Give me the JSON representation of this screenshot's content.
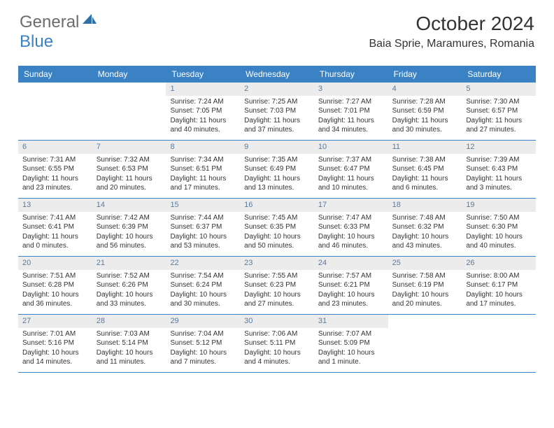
{
  "logo": {
    "general": "General",
    "blue": "Blue"
  },
  "title": "October 2024",
  "location": "Baia Sprie, Maramures, Romania",
  "colors": {
    "header_bg": "#3b82c4",
    "header_text": "#ffffff",
    "daynum_bg": "#ececec",
    "daynum_text": "#5a7a9a",
    "border": "#3b82c4",
    "body_text": "#333333",
    "logo_gray": "#6c6c6c",
    "logo_blue": "#3b82c4"
  },
  "weekdays": [
    "Sunday",
    "Monday",
    "Tuesday",
    "Wednesday",
    "Thursday",
    "Friday",
    "Saturday"
  ],
  "weeks": [
    [
      {
        "day": "",
        "sunrise": "",
        "sunset": "",
        "daylight": ""
      },
      {
        "day": "",
        "sunrise": "",
        "sunset": "",
        "daylight": ""
      },
      {
        "day": "1",
        "sunrise": "Sunrise: 7:24 AM",
        "sunset": "Sunset: 7:05 PM",
        "daylight": "Daylight: 11 hours and 40 minutes."
      },
      {
        "day": "2",
        "sunrise": "Sunrise: 7:25 AM",
        "sunset": "Sunset: 7:03 PM",
        "daylight": "Daylight: 11 hours and 37 minutes."
      },
      {
        "day": "3",
        "sunrise": "Sunrise: 7:27 AM",
        "sunset": "Sunset: 7:01 PM",
        "daylight": "Daylight: 11 hours and 34 minutes."
      },
      {
        "day": "4",
        "sunrise": "Sunrise: 7:28 AM",
        "sunset": "Sunset: 6:59 PM",
        "daylight": "Daylight: 11 hours and 30 minutes."
      },
      {
        "day": "5",
        "sunrise": "Sunrise: 7:30 AM",
        "sunset": "Sunset: 6:57 PM",
        "daylight": "Daylight: 11 hours and 27 minutes."
      }
    ],
    [
      {
        "day": "6",
        "sunrise": "Sunrise: 7:31 AM",
        "sunset": "Sunset: 6:55 PM",
        "daylight": "Daylight: 11 hours and 23 minutes."
      },
      {
        "day": "7",
        "sunrise": "Sunrise: 7:32 AM",
        "sunset": "Sunset: 6:53 PM",
        "daylight": "Daylight: 11 hours and 20 minutes."
      },
      {
        "day": "8",
        "sunrise": "Sunrise: 7:34 AM",
        "sunset": "Sunset: 6:51 PM",
        "daylight": "Daylight: 11 hours and 17 minutes."
      },
      {
        "day": "9",
        "sunrise": "Sunrise: 7:35 AM",
        "sunset": "Sunset: 6:49 PM",
        "daylight": "Daylight: 11 hours and 13 minutes."
      },
      {
        "day": "10",
        "sunrise": "Sunrise: 7:37 AM",
        "sunset": "Sunset: 6:47 PM",
        "daylight": "Daylight: 11 hours and 10 minutes."
      },
      {
        "day": "11",
        "sunrise": "Sunrise: 7:38 AM",
        "sunset": "Sunset: 6:45 PM",
        "daylight": "Daylight: 11 hours and 6 minutes."
      },
      {
        "day": "12",
        "sunrise": "Sunrise: 7:39 AM",
        "sunset": "Sunset: 6:43 PM",
        "daylight": "Daylight: 11 hours and 3 minutes."
      }
    ],
    [
      {
        "day": "13",
        "sunrise": "Sunrise: 7:41 AM",
        "sunset": "Sunset: 6:41 PM",
        "daylight": "Daylight: 11 hours and 0 minutes."
      },
      {
        "day": "14",
        "sunrise": "Sunrise: 7:42 AM",
        "sunset": "Sunset: 6:39 PM",
        "daylight": "Daylight: 10 hours and 56 minutes."
      },
      {
        "day": "15",
        "sunrise": "Sunrise: 7:44 AM",
        "sunset": "Sunset: 6:37 PM",
        "daylight": "Daylight: 10 hours and 53 minutes."
      },
      {
        "day": "16",
        "sunrise": "Sunrise: 7:45 AM",
        "sunset": "Sunset: 6:35 PM",
        "daylight": "Daylight: 10 hours and 50 minutes."
      },
      {
        "day": "17",
        "sunrise": "Sunrise: 7:47 AM",
        "sunset": "Sunset: 6:33 PM",
        "daylight": "Daylight: 10 hours and 46 minutes."
      },
      {
        "day": "18",
        "sunrise": "Sunrise: 7:48 AM",
        "sunset": "Sunset: 6:32 PM",
        "daylight": "Daylight: 10 hours and 43 minutes."
      },
      {
        "day": "19",
        "sunrise": "Sunrise: 7:50 AM",
        "sunset": "Sunset: 6:30 PM",
        "daylight": "Daylight: 10 hours and 40 minutes."
      }
    ],
    [
      {
        "day": "20",
        "sunrise": "Sunrise: 7:51 AM",
        "sunset": "Sunset: 6:28 PM",
        "daylight": "Daylight: 10 hours and 36 minutes."
      },
      {
        "day": "21",
        "sunrise": "Sunrise: 7:52 AM",
        "sunset": "Sunset: 6:26 PM",
        "daylight": "Daylight: 10 hours and 33 minutes."
      },
      {
        "day": "22",
        "sunrise": "Sunrise: 7:54 AM",
        "sunset": "Sunset: 6:24 PM",
        "daylight": "Daylight: 10 hours and 30 minutes."
      },
      {
        "day": "23",
        "sunrise": "Sunrise: 7:55 AM",
        "sunset": "Sunset: 6:23 PM",
        "daylight": "Daylight: 10 hours and 27 minutes."
      },
      {
        "day": "24",
        "sunrise": "Sunrise: 7:57 AM",
        "sunset": "Sunset: 6:21 PM",
        "daylight": "Daylight: 10 hours and 23 minutes."
      },
      {
        "day": "25",
        "sunrise": "Sunrise: 7:58 AM",
        "sunset": "Sunset: 6:19 PM",
        "daylight": "Daylight: 10 hours and 20 minutes."
      },
      {
        "day": "26",
        "sunrise": "Sunrise: 8:00 AM",
        "sunset": "Sunset: 6:17 PM",
        "daylight": "Daylight: 10 hours and 17 minutes."
      }
    ],
    [
      {
        "day": "27",
        "sunrise": "Sunrise: 7:01 AM",
        "sunset": "Sunset: 5:16 PM",
        "daylight": "Daylight: 10 hours and 14 minutes."
      },
      {
        "day": "28",
        "sunrise": "Sunrise: 7:03 AM",
        "sunset": "Sunset: 5:14 PM",
        "daylight": "Daylight: 10 hours and 11 minutes."
      },
      {
        "day": "29",
        "sunrise": "Sunrise: 7:04 AM",
        "sunset": "Sunset: 5:12 PM",
        "daylight": "Daylight: 10 hours and 7 minutes."
      },
      {
        "day": "30",
        "sunrise": "Sunrise: 7:06 AM",
        "sunset": "Sunset: 5:11 PM",
        "daylight": "Daylight: 10 hours and 4 minutes."
      },
      {
        "day": "31",
        "sunrise": "Sunrise: 7:07 AM",
        "sunset": "Sunset: 5:09 PM",
        "daylight": "Daylight: 10 hours and 1 minute."
      },
      {
        "day": "",
        "sunrise": "",
        "sunset": "",
        "daylight": ""
      },
      {
        "day": "",
        "sunrise": "",
        "sunset": "",
        "daylight": ""
      }
    ]
  ]
}
